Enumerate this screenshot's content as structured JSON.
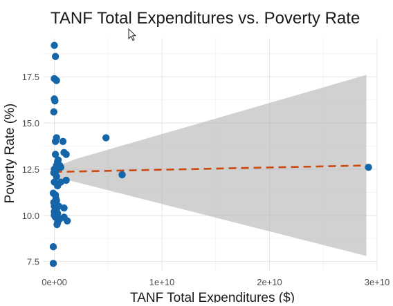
{
  "chart_data": {
    "type": "scatter",
    "title": "TANF Total Expenditures vs. Poverty Rate",
    "xlabel": "TANF Total Expenditures ($)",
    "ylabel": "Poverty Rate (%)",
    "xlim": [
      -1000000000.0,
      30000000000.0
    ],
    "ylim": [
      7.0,
      19.6
    ],
    "x_ticks": [
      {
        "value": 0,
        "label": "0e+00"
      },
      {
        "value": 10000000000.0,
        "label": "1e+10"
      },
      {
        "value": 20000000000.0,
        "label": "2e+10"
      },
      {
        "value": 30000000000.0,
        "label": "3e+10"
      }
    ],
    "y_ticks": [
      {
        "value": 7.5,
        "label": "7.5"
      },
      {
        "value": 10.0,
        "label": "10.0"
      },
      {
        "value": 12.5,
        "label": "12.5"
      },
      {
        "value": 15.0,
        "label": "15.0"
      },
      {
        "value": 17.5,
        "label": "17.5"
      }
    ],
    "grid": true,
    "legend": "none",
    "colors": {
      "points": "#1565a8",
      "fit_line": "#cc4a10",
      "confidence_band": "#b3b3b3"
    },
    "series": [
      {
        "points": [
          {
            "x": 0.0,
            "y": 19.2
          },
          {
            "x": 100000000.0,
            "y": 18.6
          },
          {
            "x": 0.0,
            "y": 17.4
          },
          {
            "x": 200000000.0,
            "y": 17.3
          },
          {
            "x": 0.0,
            "y": 16.3
          },
          {
            "x": 50000000.0,
            "y": 16.2
          },
          {
            "x": -50000000.0,
            "y": 15.6
          },
          {
            "x": 200000000.0,
            "y": 14.2
          },
          {
            "x": 100000000.0,
            "y": 14.0
          },
          {
            "x": 800000000.0,
            "y": 14.0
          },
          {
            "x": 4800000000.0,
            "y": 14.2
          },
          {
            "x": 900000000.0,
            "y": 13.4
          },
          {
            "x": 1100000000.0,
            "y": 13.3
          },
          {
            "x": 100000000.0,
            "y": 13.3
          },
          {
            "x": 350000000.0,
            "y": 13.0
          },
          {
            "x": 300000000.0,
            "y": 12.9
          },
          {
            "x": 200000000.0,
            "y": 12.7
          },
          {
            "x": 500000000.0,
            "y": 12.7
          },
          {
            "x": 600000000.0,
            "y": 12.6
          },
          {
            "x": 0.0,
            "y": 12.5
          },
          {
            "x": 150000000.0,
            "y": 12.4
          },
          {
            "x": -50000000.0,
            "y": 12.3
          },
          {
            "x": 6300000000.0,
            "y": 12.2
          },
          {
            "x": 200000000.0,
            "y": 12.1
          },
          {
            "x": 1100000000.0,
            "y": 11.9
          },
          {
            "x": 600000000.0,
            "y": 11.8
          },
          {
            "x": 0.0,
            "y": 11.8
          },
          {
            "x": 300000000.0,
            "y": 11.6
          },
          {
            "x": -100000000.0,
            "y": 11.2
          },
          {
            "x": 100000000.0,
            "y": 11.1
          },
          {
            "x": 150000000.0,
            "y": 10.9
          },
          {
            "x": 200000000.0,
            "y": 10.8
          },
          {
            "x": -50000000.0,
            "y": 10.7
          },
          {
            "x": 100000000.0,
            "y": 10.6
          },
          {
            "x": 400000000.0,
            "y": 10.5
          },
          {
            "x": 0.0,
            "y": 10.5
          },
          {
            "x": 900000000.0,
            "y": 10.4
          },
          {
            "x": 200000000.0,
            "y": 10.3
          },
          {
            "x": 0.0,
            "y": 10.2
          },
          {
            "x": 300000000.0,
            "y": 10.1
          },
          {
            "x": 0.0,
            "y": 10.0
          },
          {
            "x": 100000000.0,
            "y": 9.9
          },
          {
            "x": 900000000.0,
            "y": 9.9
          },
          {
            "x": 500000000.0,
            "y": 9.8
          },
          {
            "x": 1200000000.0,
            "y": 9.7
          },
          {
            "x": 300000000.0,
            "y": 9.6
          },
          {
            "x": 250000000.0,
            "y": 9.5
          },
          {
            "x": -100000000.0,
            "y": 8.3
          },
          {
            "x": -100000000.0,
            "y": 7.4
          },
          {
            "x": 29200000000.0,
            "y": 12.6
          }
        ]
      }
    ],
    "fit_line": {
      "x": [
        0,
        29000000000.0
      ],
      "y": [
        12.35,
        12.7
      ]
    },
    "confidence_band": {
      "x": [
        0,
        2000000000.0,
        29000000000.0
      ],
      "upper": [
        12.6,
        13.05,
        17.6
      ],
      "lower": [
        12.1,
        11.8,
        7.8
      ]
    }
  }
}
